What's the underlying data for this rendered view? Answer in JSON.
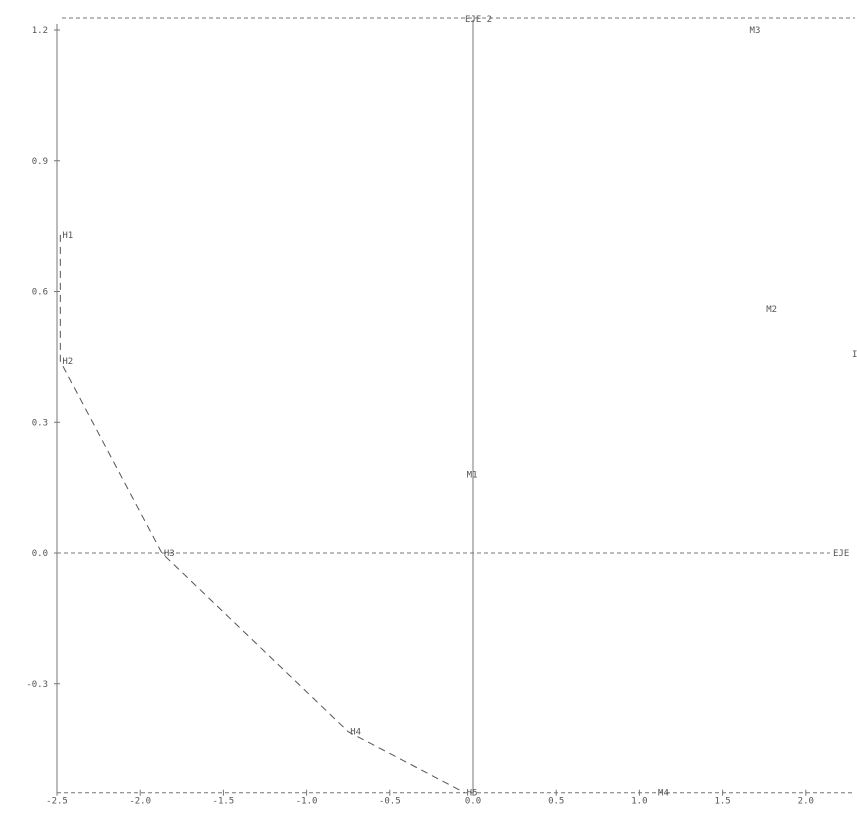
{
  "chart_data": {
    "type": "scatter",
    "title": "",
    "xlabel": "",
    "ylabel": "",
    "xlim": [
      -2.5,
      2.3
    ],
    "ylim": [
      -0.55,
      1.2
    ],
    "x_ticks": [
      -2.5,
      -2.0,
      -1.5,
      -1.0,
      -0.5,
      0.0,
      0.5,
      1.0,
      1.5,
      2.0
    ],
    "x_tick_labels": [
      "-2.5",
      "-2.0",
      "-1.5",
      "-1.0",
      "-0.5",
      "0.0",
      "0.5",
      "1.0",
      "1.5",
      "2.0"
    ],
    "y_ticks": [
      1.2,
      0.9,
      0.6,
      0.3,
      0.0,
      -0.3
    ],
    "y_tick_labels": [
      "1.2",
      "0.9",
      "0.6",
      "0.3",
      "0.0",
      "-0.3"
    ],
    "axis_labels": {
      "horizontal": "EJE",
      "vertical": "EJE 2"
    },
    "grid": false,
    "points": [
      {
        "label": "H1",
        "x": -2.48,
        "y": 0.73
      },
      {
        "label": "H2",
        "x": -2.48,
        "y": 0.44
      },
      {
        "label": "H3",
        "x": -1.87,
        "y": 0.0
      },
      {
        "label": "H4",
        "x": -0.75,
        "y": -0.41
      },
      {
        "label": "H5",
        "x": -0.05,
        "y": -0.55
      },
      {
        "label": "M1",
        "x": -0.05,
        "y": 0.18
      },
      {
        "label": "M2",
        "x": 1.75,
        "y": 0.56
      },
      {
        "label": "M3",
        "x": 1.65,
        "y": 1.2
      },
      {
        "label": "M4",
        "x": 1.1,
        "y": -0.55
      }
    ],
    "series": [
      {
        "points": [
          "H1",
          "H2",
          "H3",
          "H4",
          "H5"
        ]
      }
    ],
    "edge_mark": "I"
  }
}
